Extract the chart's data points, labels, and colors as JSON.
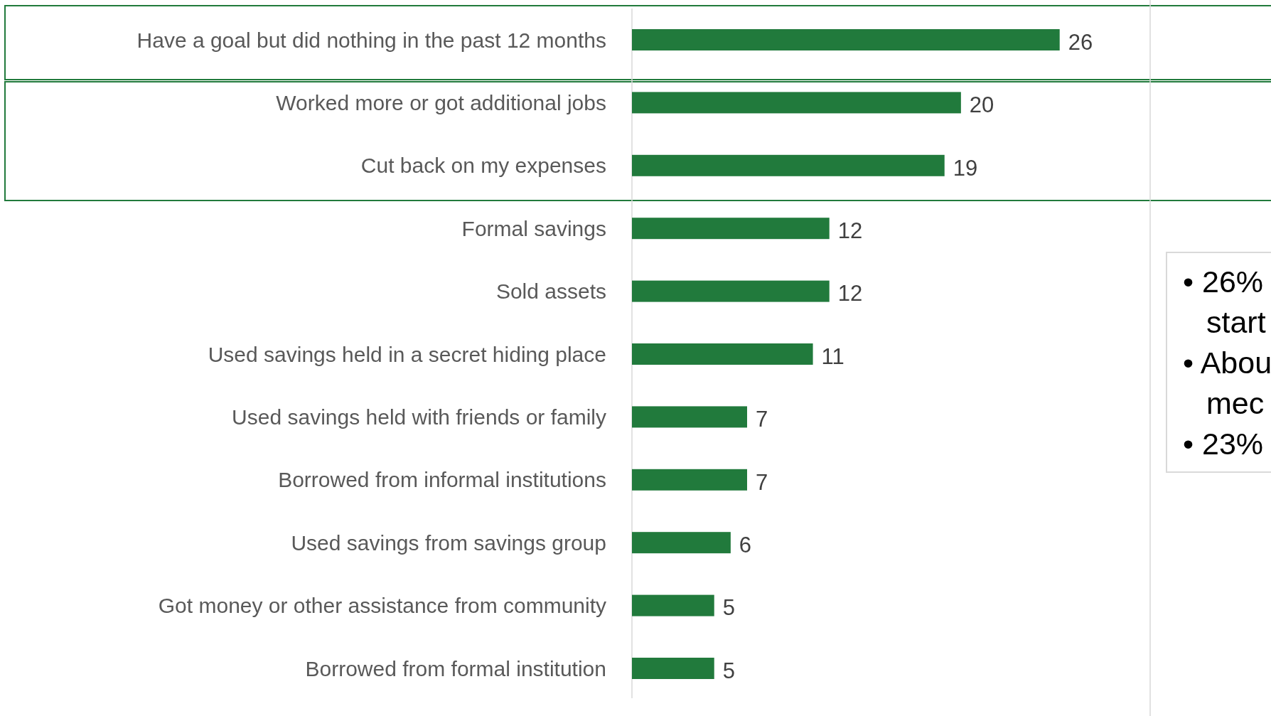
{
  "chart_data": {
    "type": "bar",
    "orientation": "horizontal",
    "categories": [
      "Have a goal but did nothing in the past 12 months",
      "Worked more or got additional jobs",
      "Cut back on my expenses",
      "Formal savings",
      "Sold assets",
      "Used savings held in a secret hiding place",
      "Used savings held with friends or family",
      "Borrowed from informal institutions",
      "Used savings from savings group",
      "Got money or other assistance from community",
      "Borrowed from formal institution"
    ],
    "values": [
      26,
      20,
      19,
      12,
      12,
      11,
      7,
      7,
      6,
      5,
      5
    ],
    "color": "#217a3c",
    "xlim": [
      0,
      31.5
    ],
    "data_labels": true,
    "tick_labels": "y",
    "annotations": [
      "• 26%",
      "start",
      "• Abou",
      "mec",
      "• 23%"
    ]
  }
}
